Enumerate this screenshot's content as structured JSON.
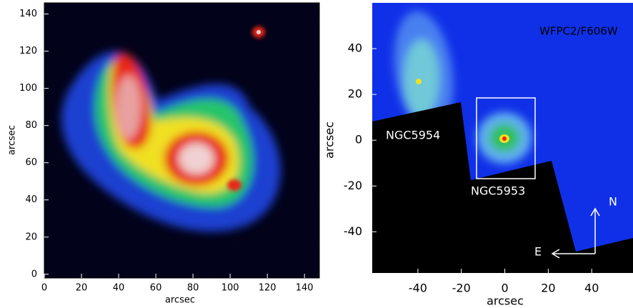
{
  "panels": [
    {
      "xlabel": "arcsec",
      "ylabel": "arcsec",
      "xlim": [
        0,
        148
      ],
      "ylim": [
        -2,
        146
      ],
      "xticks": [
        0,
        20,
        40,
        60,
        80,
        100,
        120,
        140
      ],
      "yticks": [
        0,
        20,
        40,
        60,
        80,
        100,
        120,
        140
      ]
    },
    {
      "xlabel": "arcsec",
      "ylabel": "arcsec",
      "xlim": [
        -61,
        59
      ],
      "ylim": [
        -58,
        60
      ],
      "xticks": [
        -40,
        -20,
        0,
        20,
        40
      ],
      "yticks": [
        -40,
        -20,
        0,
        20,
        40
      ],
      "annotations": [
        "WFPC2/F606W",
        "NGC5954",
        "NGC5953",
        "N",
        "E"
      ]
    }
  ]
}
